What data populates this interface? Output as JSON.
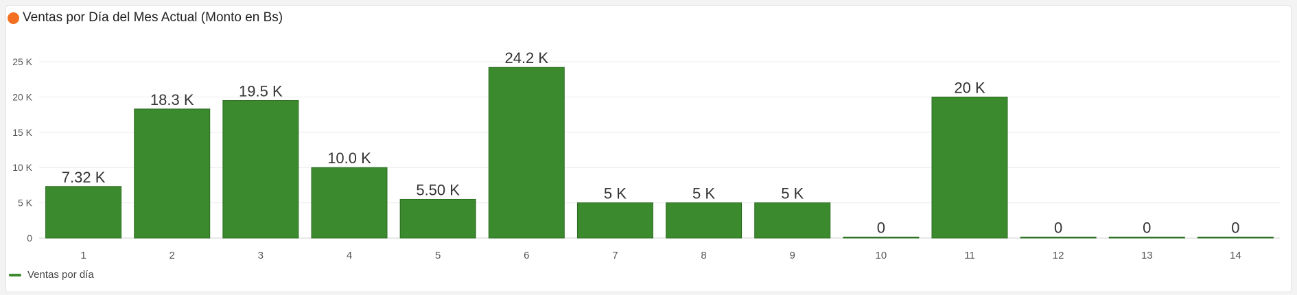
{
  "card": {
    "title": "Ventas por Día del Mes Actual (Monto en Bs)",
    "accent_color": "#f36f21"
  },
  "chart_data": {
    "type": "bar",
    "title": "Ventas por Día del Mes Actual (Monto en Bs)",
    "xlabel": "",
    "ylabel": "",
    "categories": [
      "1",
      "2",
      "3",
      "4",
      "5",
      "6",
      "7",
      "8",
      "9",
      "10",
      "11",
      "12",
      "13",
      "14"
    ],
    "series": [
      {
        "name": "Ventas por día",
        "values": [
          7320,
          18300,
          19500,
          10000,
          5500,
          24200,
          5000,
          5000,
          5000,
          0,
          20000,
          0,
          0,
          0
        ],
        "data_labels": [
          "7.32 K",
          "18.3 K",
          "19.5 K",
          "10.0 K",
          "5.50 K",
          "24.2 K",
          "5 K",
          "5 K",
          "5 K",
          "0",
          "20 K",
          "0",
          "0",
          "0"
        ]
      }
    ],
    "ylim": [
      0,
      25000
    ],
    "yticks": [
      0,
      5000,
      10000,
      15000,
      20000,
      25000
    ],
    "ytick_labels": [
      "0",
      "5 K",
      "10 K",
      "15 K",
      "20 K",
      "25 K"
    ],
    "grid": true,
    "legend_position": "bottom-left",
    "bar_color": "#3c8a2e",
    "bar_edge_color": "#2a6b20"
  }
}
